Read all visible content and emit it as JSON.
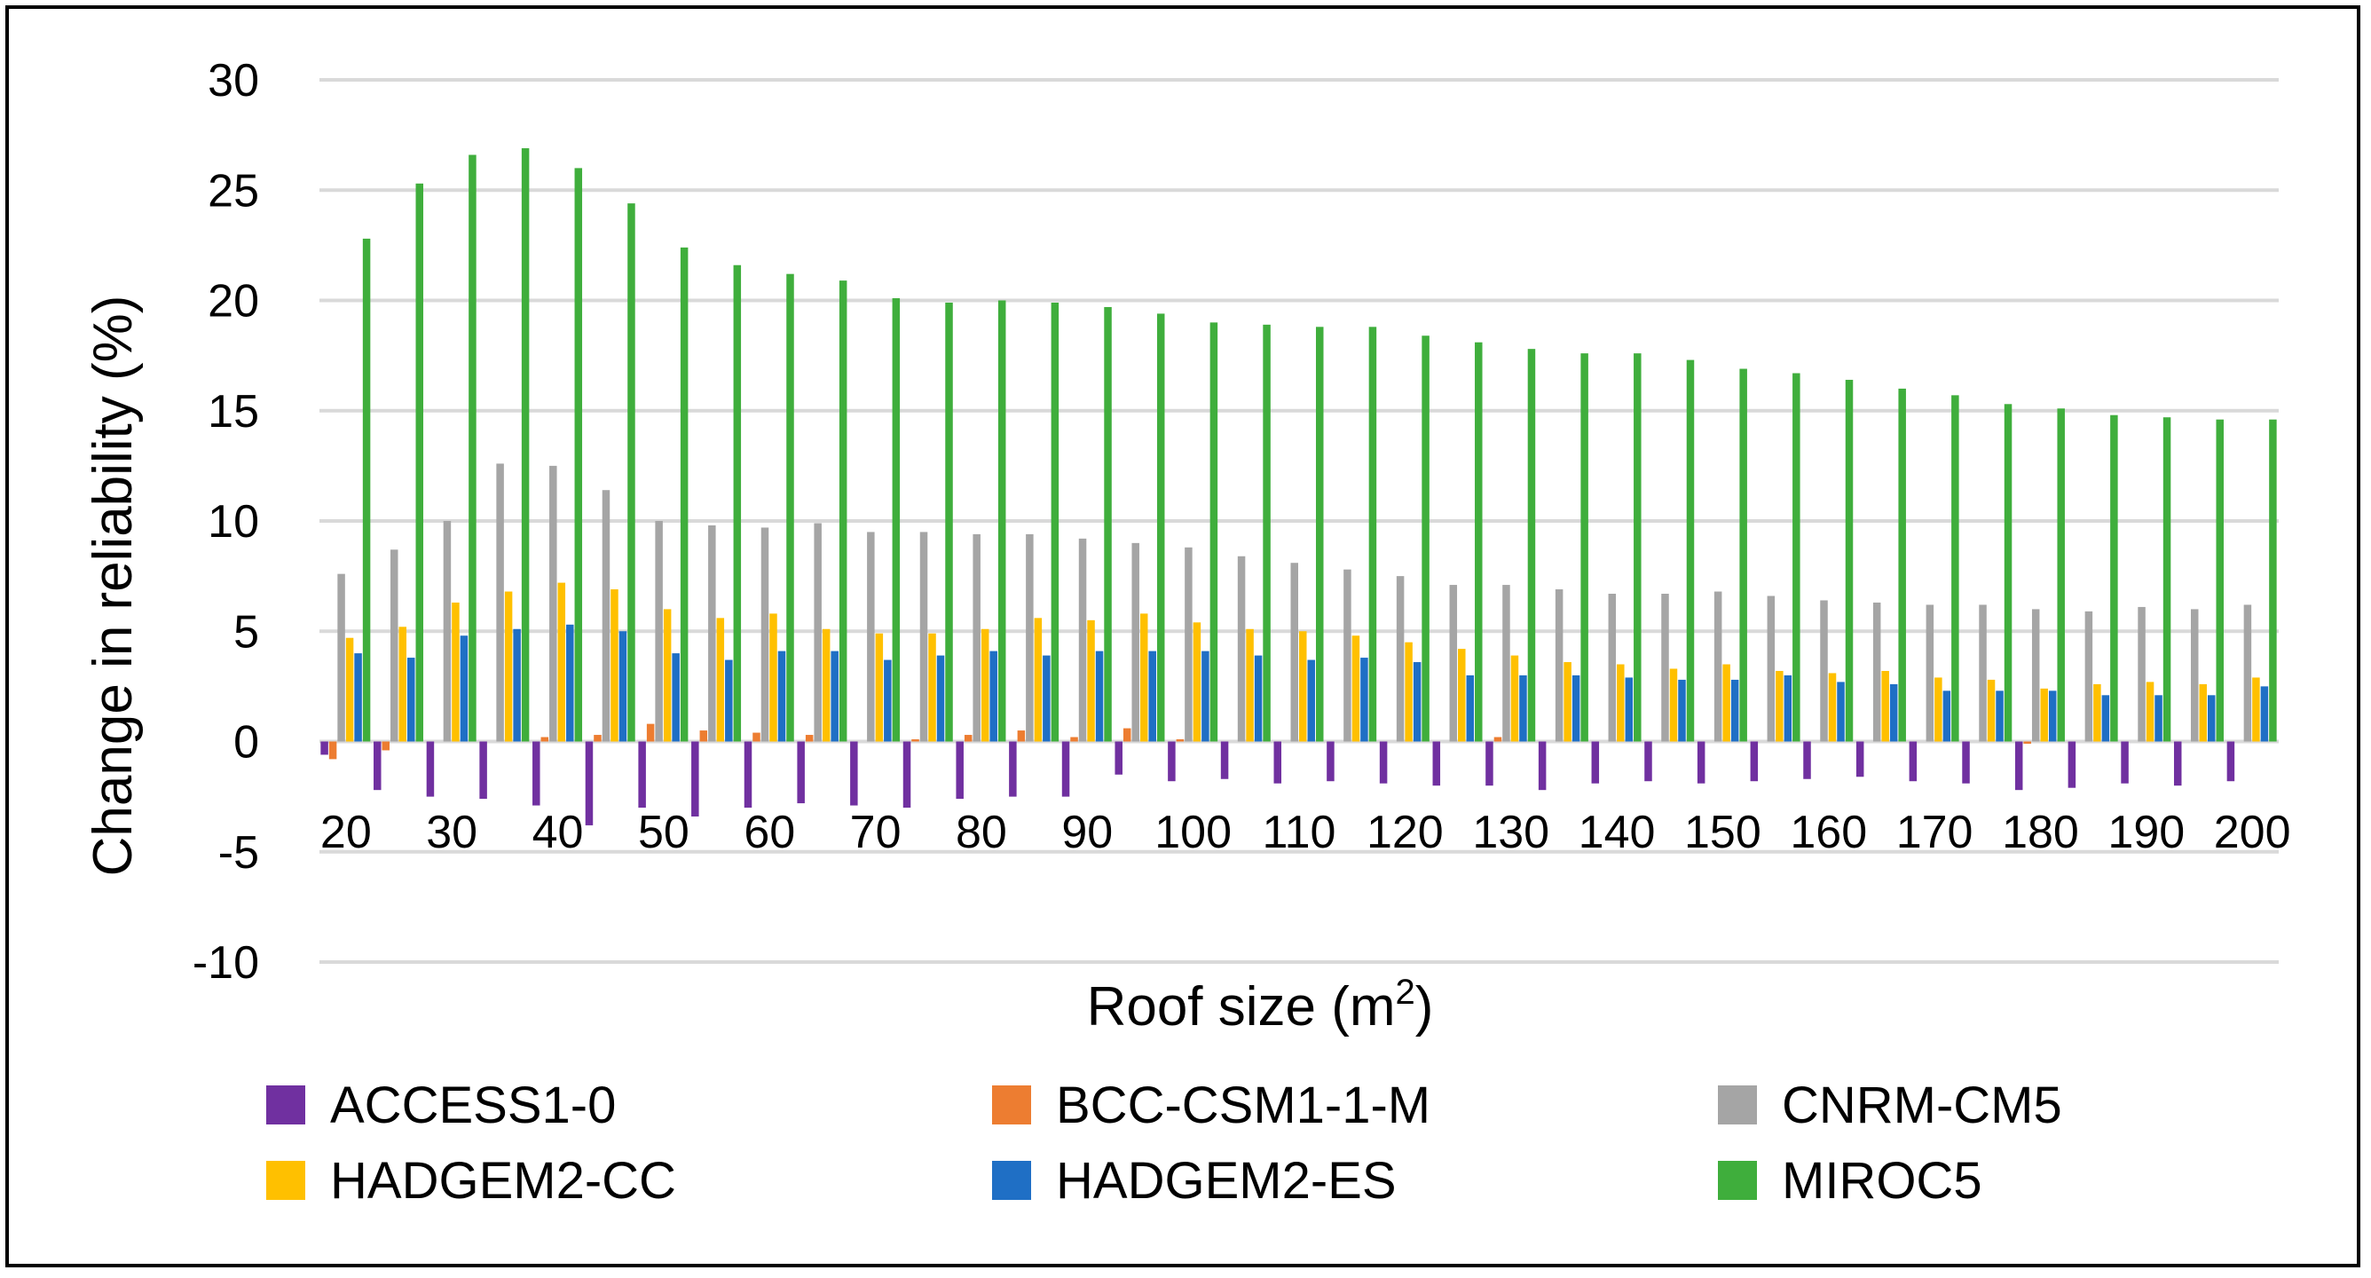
{
  "chart_data": {
    "type": "bar",
    "xlabel": "Roof size (m",
    "xlabel_sup": "2",
    "xlabel_suffix": ")",
    "ylabel": "Change in reliability (%)",
    "ylim": [
      -10,
      30
    ],
    "yticks": [
      30,
      25,
      20,
      15,
      10,
      5,
      0,
      -5,
      -10
    ],
    "grid": true,
    "legend_position": "bottom",
    "categories": [
      20,
      25,
      30,
      35,
      40,
      45,
      50,
      55,
      60,
      65,
      70,
      75,
      80,
      85,
      90,
      95,
      100,
      105,
      110,
      115,
      120,
      125,
      130,
      135,
      140,
      145,
      150,
      155,
      160,
      165,
      170,
      175,
      180,
      185,
      190,
      195,
      200
    ],
    "xtick_labels": [
      "20",
      "30",
      "40",
      "50",
      "60",
      "70",
      "80",
      "90",
      "100",
      "110",
      "120",
      "130",
      "140",
      "150",
      "160",
      "170",
      "180",
      "190",
      "200"
    ],
    "series": [
      {
        "name": "ACCESS1-0",
        "color": "#7030A0",
        "values": [
          -0.6,
          -2.2,
          -2.5,
          -2.6,
          -2.9,
          -3.8,
          -3.0,
          -3.4,
          -3.0,
          -2.8,
          -2.9,
          -3.0,
          -2.6,
          -2.5,
          -2.5,
          -1.5,
          -1.8,
          -1.7,
          -1.9,
          -1.8,
          -1.9,
          -2.0,
          -2.0,
          -2.2,
          -1.9,
          -1.8,
          -1.9,
          -1.8,
          -1.7,
          -1.6,
          -1.8,
          -1.9,
          -2.2,
          -2.1,
          -1.9,
          -2.0,
          -1.8
        ]
      },
      {
        "name": "BCC-CSM1-1-M",
        "color": "#ED7D31",
        "values": [
          -0.8,
          -0.4,
          0,
          0,
          0.2,
          0.3,
          0.8,
          0.5,
          0.4,
          0.3,
          0,
          0.1,
          0.3,
          0.5,
          0.2,
          0.6,
          0.1,
          0,
          0,
          0,
          0,
          0,
          0.2,
          0,
          0,
          0,
          0,
          0,
          0,
          0,
          0,
          0,
          -0.1,
          0,
          0,
          0,
          0
        ]
      },
      {
        "name": "CNRM-CM5",
        "color": "#A5A5A5",
        "values": [
          7.6,
          8.7,
          10.0,
          12.6,
          12.5,
          11.4,
          10.0,
          9.8,
          9.7,
          9.9,
          9.5,
          9.5,
          9.4,
          9.4,
          9.2,
          9.0,
          8.8,
          8.4,
          8.1,
          7.8,
          7.5,
          7.1,
          7.1,
          6.9,
          6.7,
          6.7,
          6.8,
          6.6,
          6.4,
          6.3,
          6.2,
          6.2,
          6.0,
          5.9,
          6.1,
          6.0,
          6.2
        ]
      },
      {
        "name": "HADGEM2-CC",
        "color": "#FFC000",
        "values": [
          4.7,
          5.2,
          6.3,
          6.8,
          7.2,
          6.9,
          6.0,
          5.6,
          5.8,
          5.1,
          4.9,
          4.9,
          5.1,
          5.6,
          5.5,
          5.8,
          5.4,
          5.1,
          5.0,
          4.8,
          4.5,
          4.2,
          3.9,
          3.6,
          3.5,
          3.3,
          3.5,
          3.2,
          3.1,
          3.2,
          2.9,
          2.8,
          2.4,
          2.6,
          2.7,
          2.6,
          2.9
        ]
      },
      {
        "name": "HADGEM2-ES",
        "color": "#1F6FC5",
        "values": [
          4.0,
          3.8,
          4.8,
          5.1,
          5.3,
          5.0,
          4.0,
          3.7,
          4.1,
          4.1,
          3.7,
          3.9,
          4.1,
          3.9,
          4.1,
          4.1,
          4.1,
          3.9,
          3.7,
          3.8,
          3.6,
          3.0,
          3.0,
          3.0,
          2.9,
          2.8,
          2.8,
          3.0,
          2.7,
          2.6,
          2.3,
          2.3,
          2.3,
          2.1,
          2.1,
          2.1,
          2.5
        ]
      },
      {
        "name": "MIROC5",
        "color": "#3FAE3C",
        "values": [
          22.8,
          25.3,
          26.6,
          26.9,
          26.0,
          24.4,
          22.4,
          21.6,
          21.2,
          20.9,
          20.1,
          19.9,
          20.0,
          19.9,
          19.7,
          19.4,
          19.0,
          18.9,
          18.8,
          18.8,
          18.4,
          18.1,
          17.8,
          17.6,
          17.6,
          17.3,
          16.9,
          16.7,
          16.4,
          16.0,
          15.7,
          15.3,
          15.1,
          14.8,
          14.7,
          14.6,
          14.6
        ]
      }
    ]
  }
}
